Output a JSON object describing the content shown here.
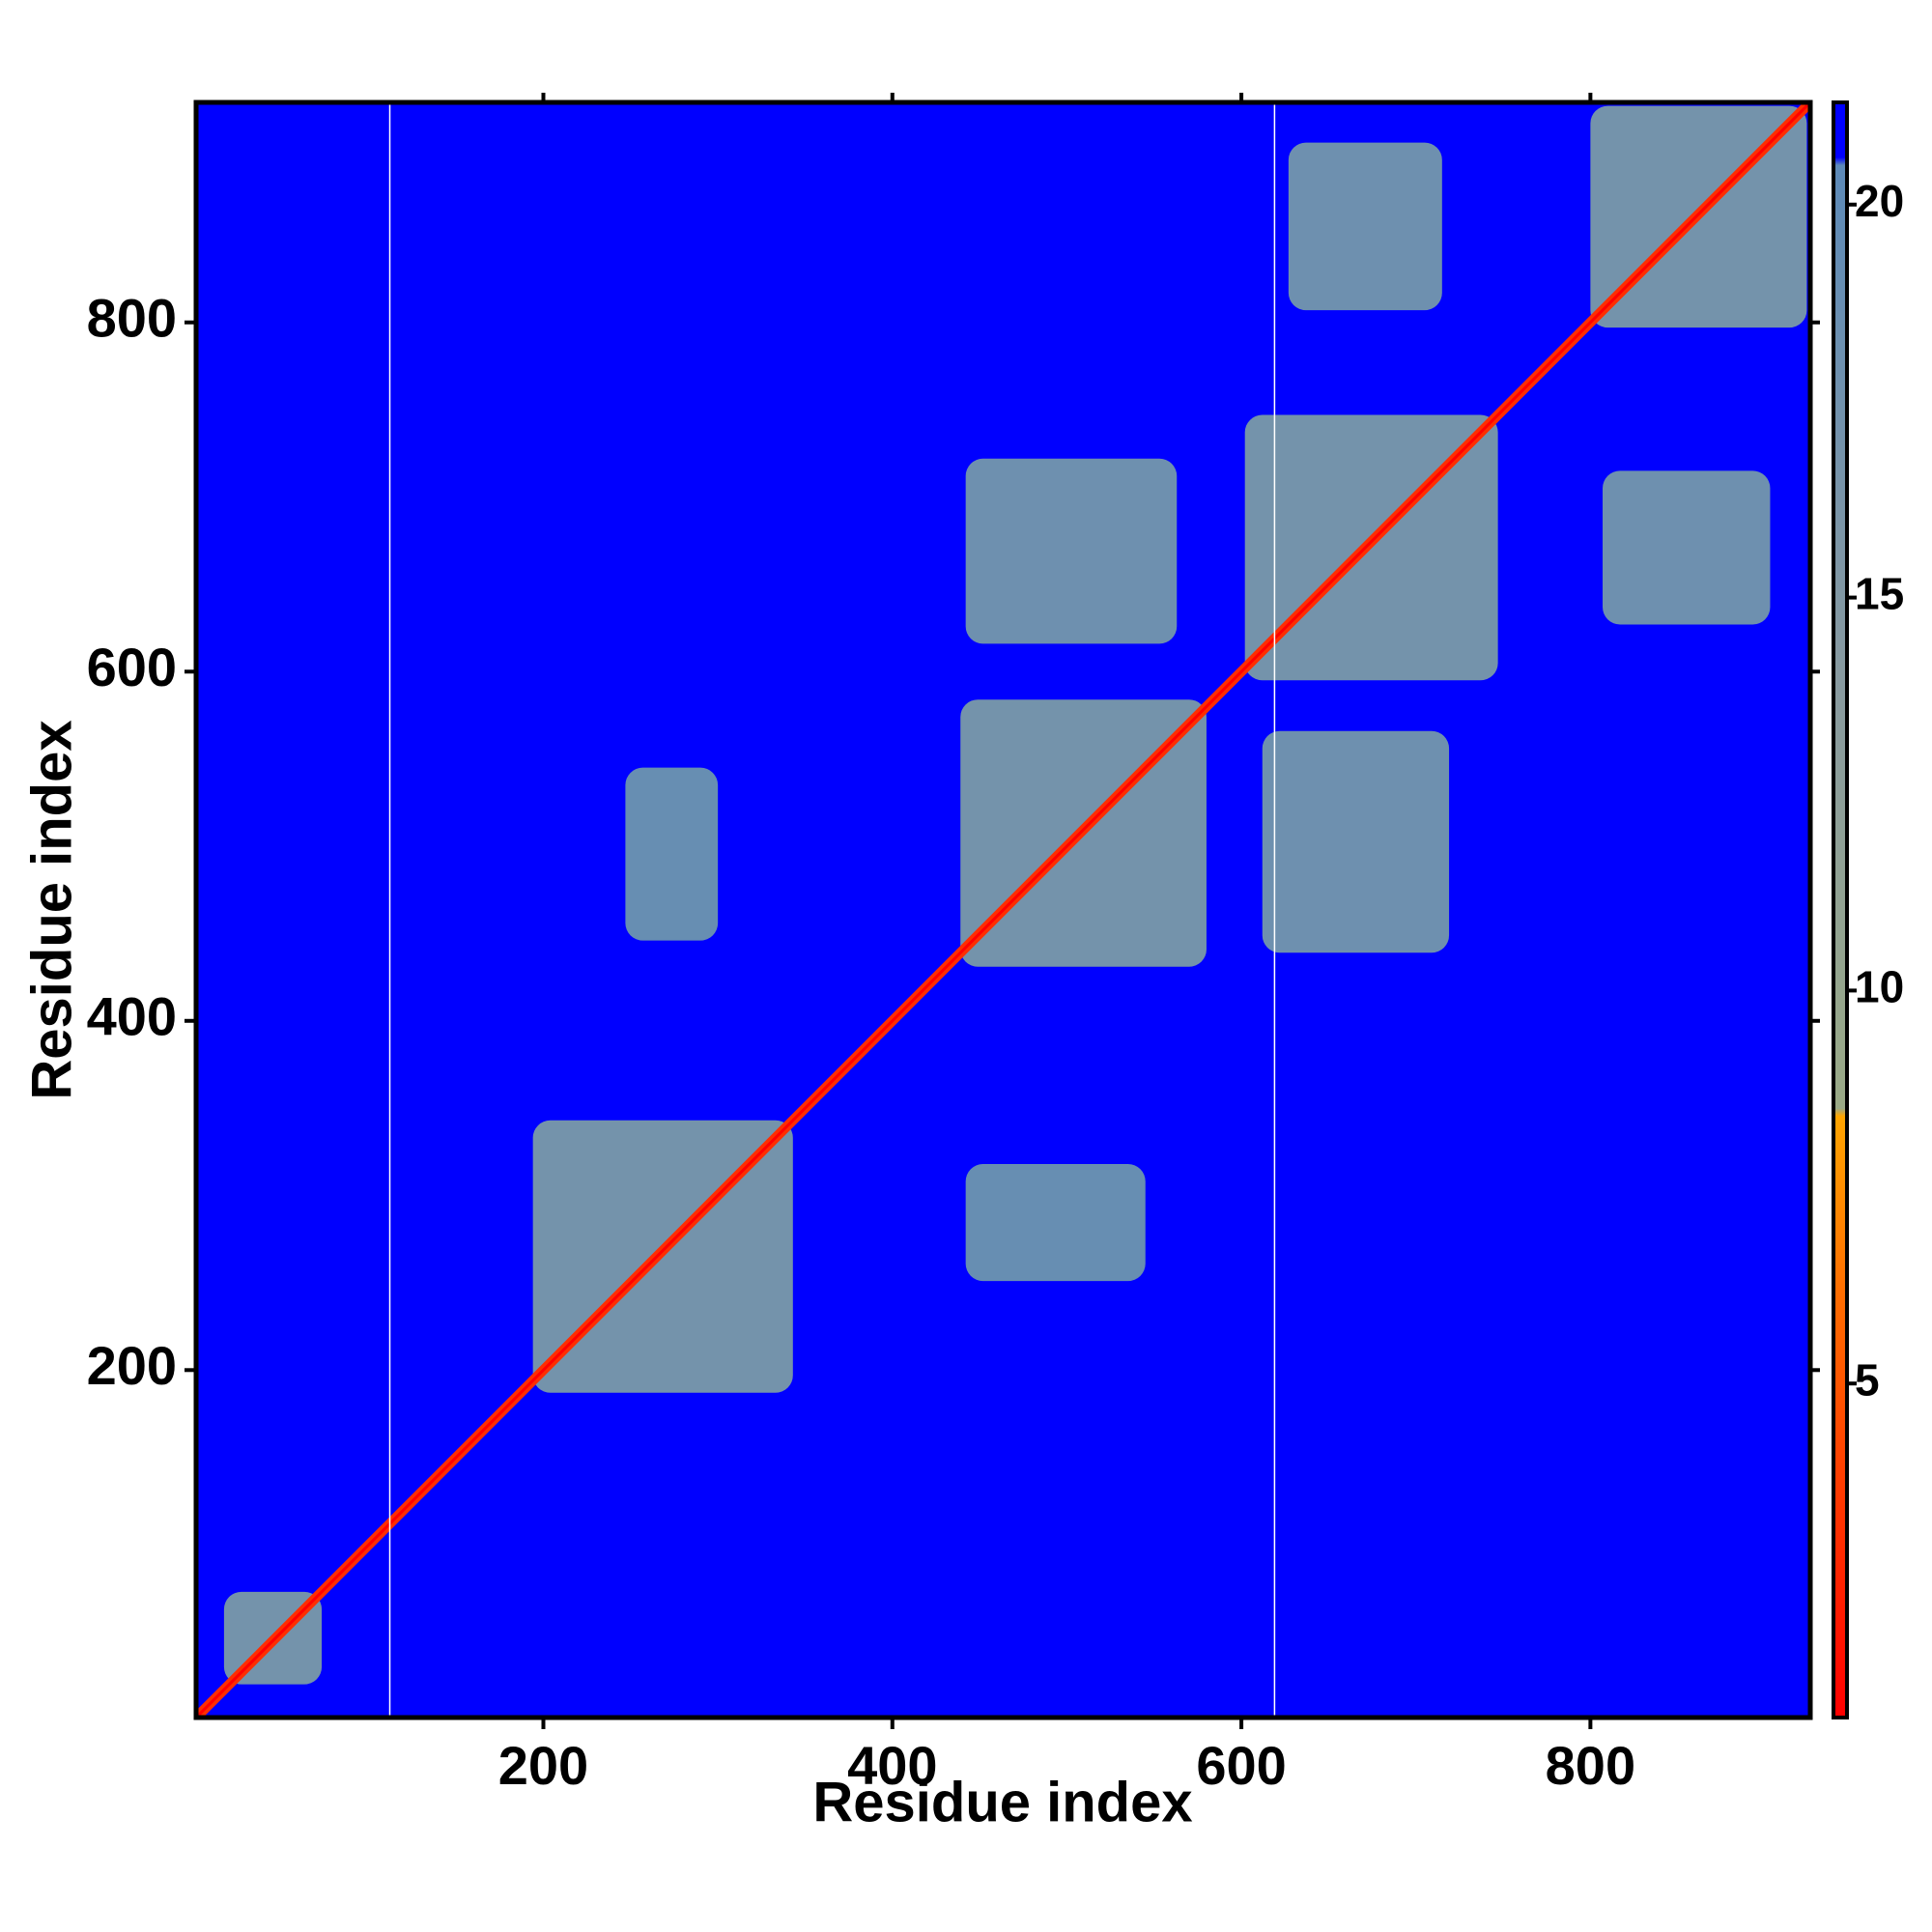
{
  "chart_data": {
    "type": "heatmap",
    "x_label": "Residue index",
    "y_label": "Residue index",
    "xlim": [
      1,
      926
    ],
    "ylim": [
      1,
      926
    ],
    "xticks": [
      200,
      400,
      600,
      800
    ],
    "yticks": [
      200,
      400,
      600,
      800
    ],
    "background_value": 21,
    "gaps": [
      112,
      619
    ],
    "diagonal": {
      "halfwidth": 4,
      "value": 3
    },
    "regions": [
      {
        "x": [
          17,
          73
        ],
        "y": [
          20,
          73
        ],
        "value": 17
      },
      {
        "x": [
          194,
          343
        ],
        "y": [
          187,
          343
        ],
        "value": 17
      },
      {
        "x": [
          439,
          580
        ],
        "y": [
          431,
          584
        ],
        "value": 17
      },
      {
        "x": [
          602,
          747
        ],
        "y": [
          595,
          747
        ],
        "value": 17
      },
      {
        "x": [
          800,
          924
        ],
        "y": [
          797,
          924
        ],
        "value": 17
      },
      {
        "x": [
          442,
          563
        ],
        "y": [
          616,
          722
        ],
        "value": 18
      },
      {
        "x": [
          612,
          719
        ],
        "y": [
          439,
          566
        ],
        "value": 18
      },
      {
        "x": [
          627,
          715
        ],
        "y": [
          807,
          903
        ],
        "value": 18
      },
      {
        "x": [
          807,
          903
        ],
        "y": [
          627,
          715
        ],
        "value": 18
      },
      {
        "x": [
          247,
          300
        ],
        "y": [
          446,
          545
        ],
        "value": 19
      },
      {
        "x": [
          442,
          545
        ],
        "y": [
          251,
          318
        ],
        "value": 19
      }
    ],
    "colorbar": {
      "lim": [
        0.75,
        21.3
      ],
      "ticks": [
        5,
        10,
        15,
        20
      ],
      "stops": [
        {
          "value": 0.75,
          "color": "#ff0000"
        },
        {
          "value": 6,
          "color": "#ff6a00"
        },
        {
          "value": 8.4,
          "color": "#ffa500"
        },
        {
          "value": 8.5,
          "color": "#9aaa86"
        },
        {
          "value": 14,
          "color": "#889aa0"
        },
        {
          "value": 20.5,
          "color": "#5d8ab8"
        },
        {
          "value": 20.6,
          "color": "#0000ff"
        },
        {
          "value": 21.3,
          "color": "#0000ff"
        }
      ]
    }
  }
}
